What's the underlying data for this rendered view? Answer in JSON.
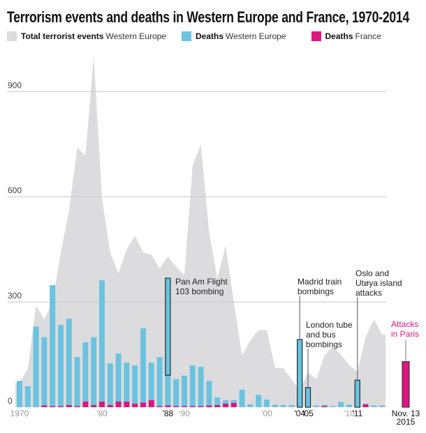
{
  "chart_data": {
    "type": "bar",
    "title": "Terrorism events and deaths in Western Europe and France, 1970-2014",
    "legend": [
      {
        "bold": "Total terrorist events",
        "rest": "Western Europe",
        "color": "#dcdcde"
      },
      {
        "bold": "Deaths",
        "rest": "Western Europe",
        "color": "#6cc3df"
      },
      {
        "bold": "Deaths",
        "rest": "France",
        "color": "#e0157f"
      }
    ],
    "legend_placement": "top-left",
    "ylim": [
      0,
      1000
    ],
    "yticks": [
      "0",
      "300",
      "600",
      "900"
    ],
    "ytick_values": [
      0,
      300,
      600,
      900
    ],
    "grid": true,
    "x": [
      1970,
      1971,
      1972,
      1973,
      1974,
      1975,
      1976,
      1977,
      1978,
      1979,
      1980,
      1981,
      1982,
      1983,
      1984,
      1985,
      1986,
      1987,
      1988,
      1989,
      1990,
      1991,
      1992,
      1993,
      1994,
      1995,
      1996,
      1997,
      1998,
      1999,
      2000,
      2001,
      2002,
      2003,
      2004,
      2005,
      2006,
      2007,
      2008,
      2009,
      2010,
      2011,
      2012,
      2013,
      2014
    ],
    "series": [
      {
        "name": "Total terrorist events Western Europe",
        "type": "area",
        "values": [
          70,
          110,
          290,
          250,
          300,
          440,
          560,
          740,
          718,
          1000,
          598,
          440,
          382,
          450,
          489,
          441,
          435,
          395,
          430,
          400,
          376,
          688,
          750,
          500,
          366,
          461,
          300,
          147,
          190,
          220,
          220,
          113,
          111,
          80,
          48,
          100,
          80,
          147,
          173,
          150,
          120,
          101,
          200,
          250,
          207
        ]
      },
      {
        "name": "Deaths Western Europe",
        "type": "bar",
        "values": [
          75,
          60,
          230,
          200,
          348,
          235,
          252,
          143,
          185,
          200,
          362,
          125,
          153,
          127,
          119,
          225,
          127,
          143,
          368,
          80,
          90,
          119,
          115,
          75,
          28,
          20,
          20,
          50,
          8,
          35,
          22,
          7,
          6,
          6,
          193,
          56,
          5,
          7,
          3,
          15,
          7,
          77,
          10,
          5,
          5
        ]
      },
      {
        "name": "Deaths France",
        "type": "bar",
        "values": [
          0,
          0,
          0,
          5,
          3,
          3,
          6,
          3,
          16,
          6,
          16,
          6,
          16,
          16,
          10,
          13,
          20,
          3,
          5,
          3,
          3,
          3,
          3,
          5,
          6,
          10,
          12,
          0,
          0,
          0,
          0,
          0,
          0,
          0,
          0,
          0,
          0,
          3,
          0,
          0,
          0,
          0,
          8,
          0,
          0
        ]
      }
    ],
    "xticks": [
      {
        "year": 1970,
        "label": "1970",
        "emphasis": false
      },
      {
        "year": 1980,
        "label": "'80",
        "emphasis": false
      },
      {
        "year": 1988,
        "label": "'88",
        "emphasis": true
      },
      {
        "year": 1990,
        "label": "'90",
        "emphasis": false
      },
      {
        "year": 2000,
        "label": "'00",
        "emphasis": false
      },
      {
        "year": 2004,
        "label": "'04",
        "emphasis": true
      },
      {
        "year": 2005,
        "label": "'05",
        "emphasis": true
      },
      {
        "year": 2010,
        "label": "'10",
        "emphasis": false
      },
      {
        "year": 2011,
        "label": "'11",
        "emphasis": true
      }
    ],
    "annotations": [
      {
        "year": 1988,
        "lines": [
          "Pan Am Flight",
          "103 bombing"
        ],
        "highlight_from": 91
      },
      {
        "year": 2004,
        "lines": [
          "Madrid train",
          "bombings"
        ]
      },
      {
        "year": 2005,
        "lines": [
          "London tube",
          "and bus",
          "bombings"
        ]
      },
      {
        "year": 2011,
        "lines": [
          "Oslo and",
          "Utøya island",
          "attacks"
        ]
      }
    ],
    "paris": {
      "value": 130,
      "lines": [
        "Attacks",
        "in Paris"
      ],
      "date_lines": [
        "Nov. 13",
        "2015"
      ],
      "color": "#e0157f"
    }
  }
}
